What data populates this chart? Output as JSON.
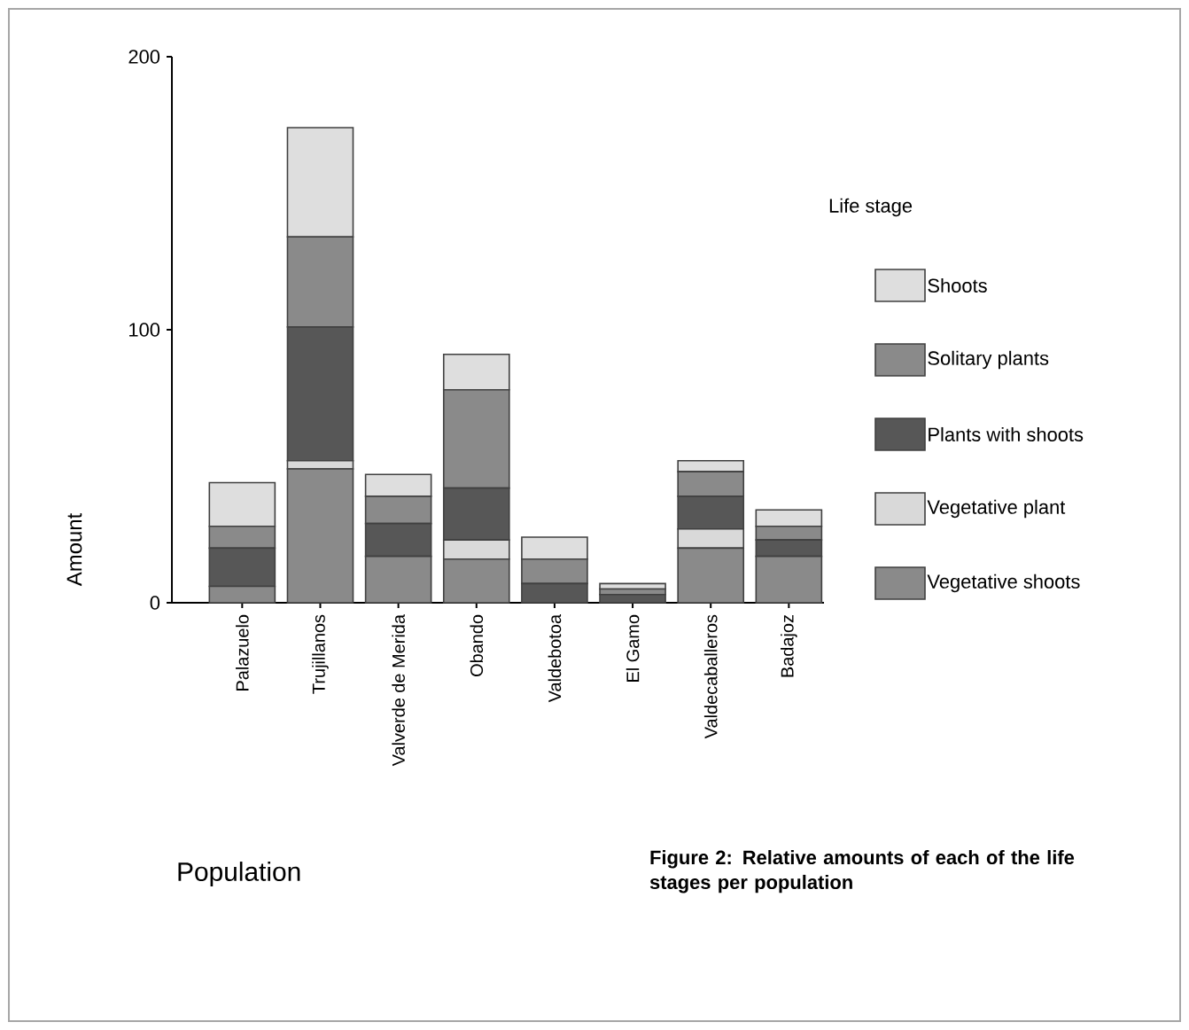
{
  "chart_data": {
    "type": "bar",
    "stacked": true,
    "xlabel": "Population",
    "ylabel": "Amount",
    "legend_title": "Life stage",
    "legend": "right",
    "categories": [
      "Palazuelo",
      "Trujillanos",
      "Valverde de Merida",
      "Obando",
      "Valdebotoa",
      "El Gamo",
      "Valdecaballeros",
      "Badajoz"
    ],
    "ylim": [
      0,
      200
    ],
    "yticks": [
      0,
      100,
      200
    ],
    "series": [
      {
        "name": "Vegetative shoots",
        "color": "#8a8a8a",
        "values": [
          6,
          49,
          17,
          16,
          0,
          0,
          20,
          17
        ]
      },
      {
        "name": "Vegetative plant",
        "color": "#d9d9d9",
        "values": [
          0,
          3,
          0,
          7,
          0,
          0,
          7,
          0
        ]
      },
      {
        "name": "Plants with shoots",
        "color": "#575757",
        "values": [
          14,
          49,
          12,
          19,
          7,
          3,
          12,
          6
        ]
      },
      {
        "name": "Solitary plants",
        "color": "#8a8a8a",
        "values": [
          8,
          33,
          10,
          36,
          9,
          2,
          9,
          5
        ]
      },
      {
        "name": "Shoots",
        "color": "#dedede",
        "values": [
          16,
          40,
          8,
          13,
          8,
          2,
          4,
          6
        ]
      }
    ],
    "annotations": [
      "Figure 2:  Relative amounts of each of the life stages per population"
    ]
  }
}
